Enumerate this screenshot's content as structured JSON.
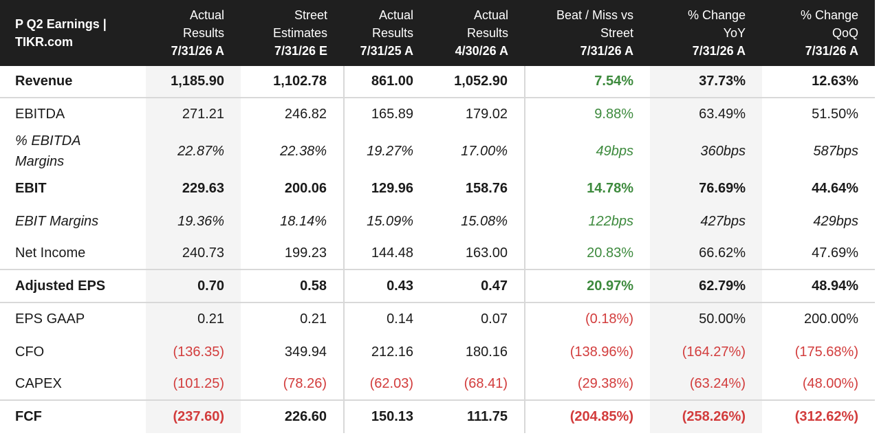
{
  "title": "P Q2 Earnings | TIKR.com",
  "columns": [
    {
      "line1": "Actual",
      "line2": "Results",
      "date": "7/31/26 A"
    },
    {
      "line1": "Street",
      "line2": "Estimates",
      "date": "7/31/26 E"
    },
    {
      "line1": "Actual",
      "line2": "Results",
      "date": "7/31/25 A"
    },
    {
      "line1": "Actual",
      "line2": "Results",
      "date": "4/30/26 A"
    },
    {
      "line1": "Beat / Miss vs",
      "line2": "Street",
      "date": "7/31/26 A"
    },
    {
      "line1": "% Change",
      "line2": "YoY",
      "date": "7/31/26 A"
    },
    {
      "line1": "% Change",
      "line2": "QoQ",
      "date": "7/31/26 A"
    }
  ],
  "rows": [
    {
      "label": "Revenue",
      "values": [
        "1,185.90",
        "1,102.78",
        "861.00",
        "1,052.90",
        "7.54%",
        "37.73%",
        "12.63%"
      ]
    },
    {
      "label": "EBITDA",
      "values": [
        "271.21",
        "246.82",
        "165.89",
        "179.02",
        "9.88%",
        "63.49%",
        "51.50%"
      ]
    },
    {
      "label": "% EBITDA Margins",
      "values": [
        "22.87%",
        "22.38%",
        "19.27%",
        "17.00%",
        "49bps",
        "360bps",
        "587bps"
      ]
    },
    {
      "label": "EBIT",
      "values": [
        "229.63",
        "200.06",
        "129.96",
        "158.76",
        "14.78%",
        "76.69%",
        "44.64%"
      ]
    },
    {
      "label": "EBIT Margins",
      "values": [
        "19.36%",
        "18.14%",
        "15.09%",
        "15.08%",
        "122bps",
        "427bps",
        "429bps"
      ]
    },
    {
      "label": "Net Income",
      "values": [
        "240.73",
        "199.23",
        "144.48",
        "163.00",
        "20.83%",
        "66.62%",
        "47.69%"
      ]
    },
    {
      "label": "Adjusted EPS",
      "values": [
        "0.70",
        "0.58",
        "0.43",
        "0.47",
        "20.97%",
        "62.79%",
        "48.94%"
      ]
    },
    {
      "label": "EPS GAAP",
      "values": [
        "0.21",
        "0.21",
        "0.14",
        "0.07",
        "(0.18%)",
        "50.00%",
        "200.00%"
      ]
    },
    {
      "label": "CFO",
      "values": [
        "(136.35)",
        "349.94",
        "212.16",
        "180.16",
        "(138.96%)",
        "(164.27%)",
        "(175.68%)"
      ]
    },
    {
      "label": "CAPEX",
      "values": [
        "(101.25)",
        "(78.26)",
        "(62.03)",
        "(68.41)",
        "(29.38%)",
        "(63.24%)",
        "(48.00%)"
      ]
    },
    {
      "label": "FCF",
      "values": [
        "(237.60)",
        "226.60",
        "150.13",
        "111.75",
        "(204.85%)",
        "(258.26%)",
        "(312.62%)"
      ]
    }
  ],
  "colors": {
    "header_bg": "#1f1f1f",
    "positive": "#3d8a3d",
    "negative": "#d23c3c",
    "shade": "#f4f4f4"
  }
}
